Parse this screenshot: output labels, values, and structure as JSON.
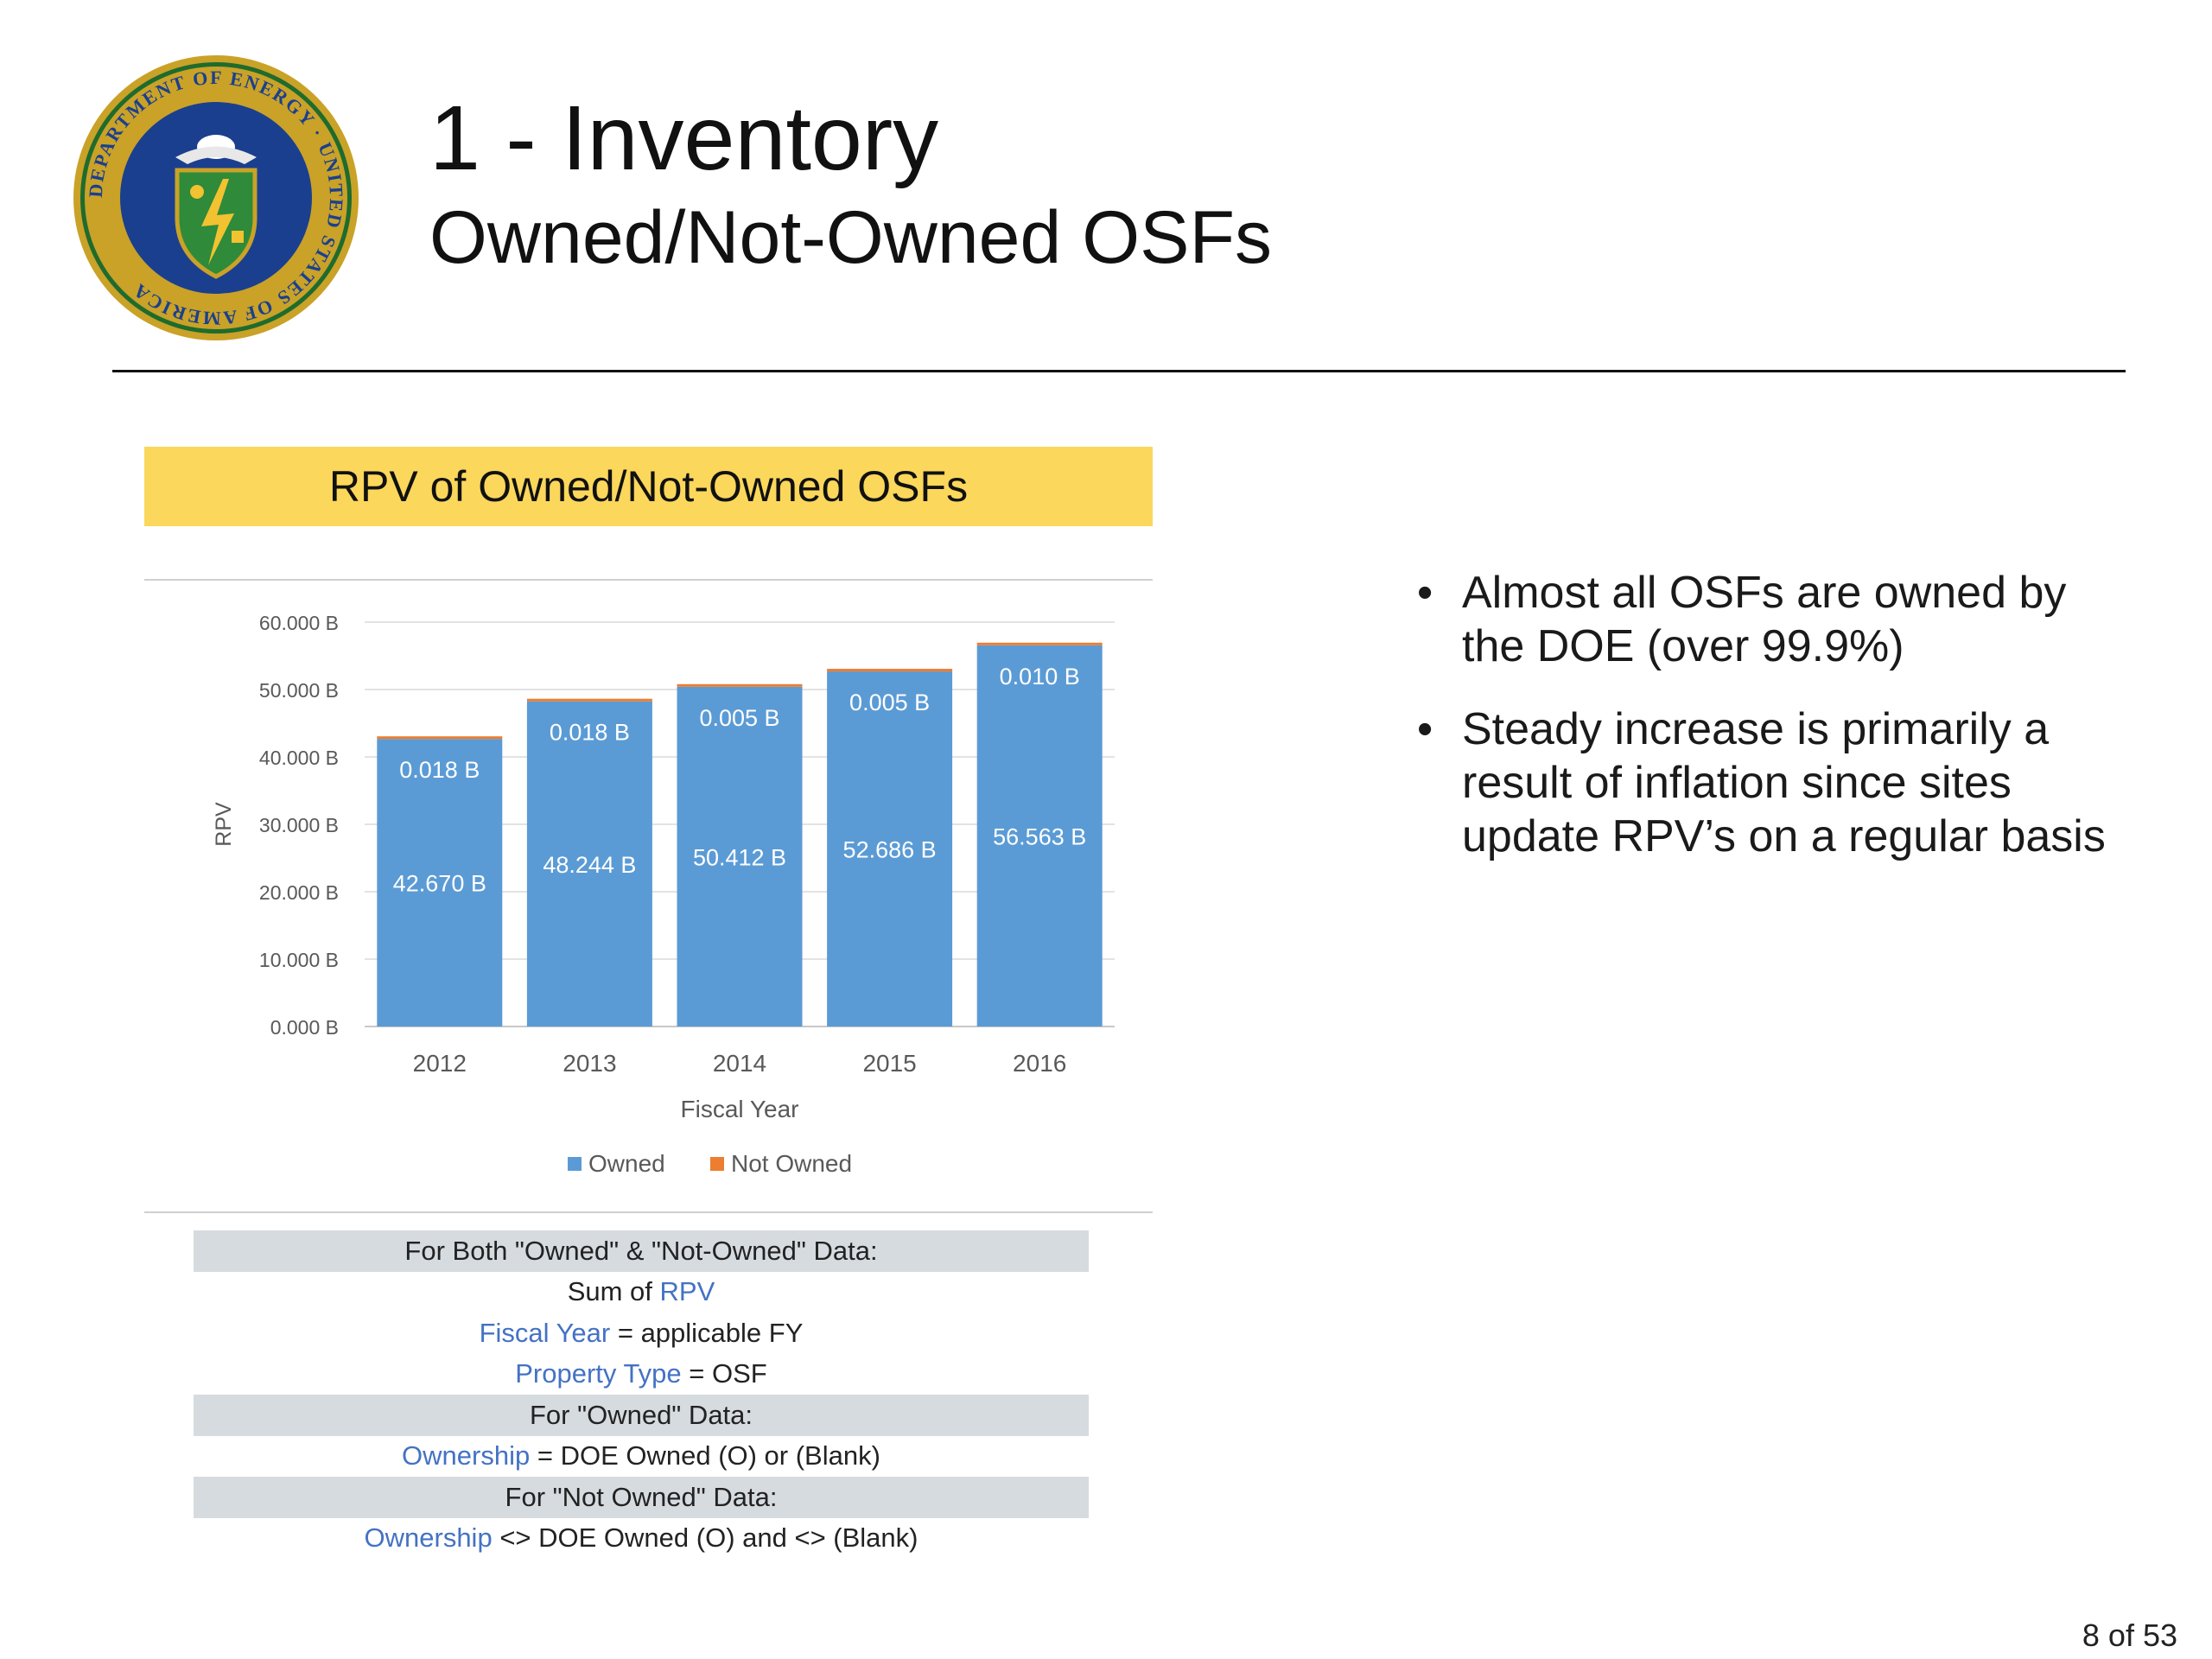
{
  "header": {
    "title": "1 - Inventory",
    "subtitle": "Owned/Not-Owned OSFs",
    "seal_text": "DEPARTMENT OF ENERGY · UNITED STATES OF AMERICA"
  },
  "chart_banner": "RPV of Owned/Not-Owned OSFs",
  "chart_data": {
    "type": "bar",
    "stacked": true,
    "categories": [
      "2012",
      "2013",
      "2014",
      "2015",
      "2016"
    ],
    "series": [
      {
        "name": "Owned",
        "color": "#5b9bd5",
        "values": [
          42.67,
          48.244,
          50.412,
          52.686,
          56.563
        ],
        "labels": [
          "42.670 B",
          "48.244 B",
          "50.412 B",
          "52.686 B",
          "56.563 B"
        ]
      },
      {
        "name": "Not Owned",
        "color": "#ed7d31",
        "values": [
          0.018,
          0.018,
          0.005,
          0.005,
          0.01
        ],
        "labels": [
          "0.018 B",
          "0.018 B",
          "0.005 B",
          "0.005 B",
          "0.010 B"
        ]
      }
    ],
    "xlabel": "Fiscal Year",
    "ylabel": "RPV",
    "ylim": [
      0,
      60
    ],
    "yticks": [
      "0.000 B",
      "10.000 B",
      "20.000 B",
      "30.000 B",
      "40.000 B",
      "50.000 B",
      "60.000 B"
    ],
    "grid": true,
    "legend": "bottom"
  },
  "definitions": [
    {
      "shaded": true,
      "parts": [
        {
          "text": "For Both \"Owned\" & \"Not-Owned\" Data:",
          "hl": false
        }
      ]
    },
    {
      "shaded": false,
      "parts": [
        {
          "text": "Sum of ",
          "hl": false
        },
        {
          "text": "RPV",
          "hl": true
        }
      ]
    },
    {
      "shaded": false,
      "parts": [
        {
          "text": "Fiscal Year",
          "hl": true
        },
        {
          "text": " = applicable FY",
          "hl": false
        }
      ]
    },
    {
      "shaded": false,
      "parts": [
        {
          "text": "Property Type",
          "hl": true
        },
        {
          "text": " = OSF",
          "hl": false
        }
      ]
    },
    {
      "shaded": true,
      "parts": [
        {
          "text": "For \"Owned\" Data:",
          "hl": false
        }
      ]
    },
    {
      "shaded": false,
      "parts": [
        {
          "text": "Ownership",
          "hl": true
        },
        {
          "text": " = DOE Owned (O) or (Blank)",
          "hl": false
        }
      ]
    },
    {
      "shaded": true,
      "parts": [
        {
          "text": "For \"Not Owned\" Data:",
          "hl": false
        }
      ]
    },
    {
      "shaded": false,
      "parts": [
        {
          "text": "Ownership",
          "hl": true
        },
        {
          "text": " <> DOE Owned (O) and <> (Blank)",
          "hl": false
        }
      ]
    }
  ],
  "bullets": [
    "Almost all OSFs are owned by the DOE (over 99.9%)",
    "Steady increase is primarily a result of inflation since sites update RPV’s on a regular basis"
  ],
  "footer": {
    "page_number": "8 of 53"
  }
}
